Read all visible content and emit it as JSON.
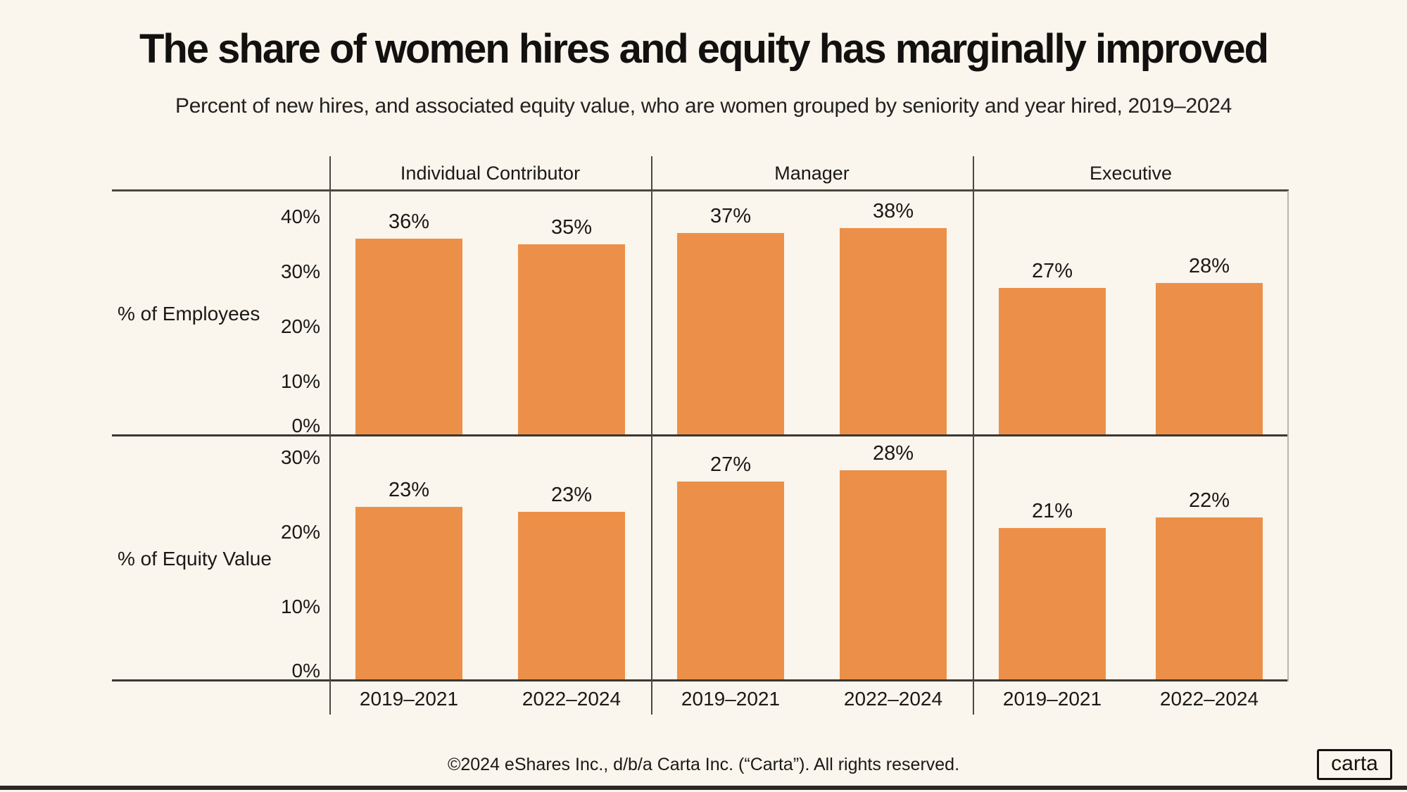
{
  "header": {
    "title": "The share of women hires and equity has marginally improved",
    "subtitle": "Percent of new hires, and associated equity value, who are women grouped by seniority and year hired, 2019–2024"
  },
  "footer": {
    "copyright": "©2024 eShares Inc., d/b/a Carta Inc. (“Carta”). All rights reserved.",
    "logo_text": "carta"
  },
  "colors": {
    "background": "#faf5ed",
    "bar_orange": "#ec9049",
    "line_dark": "#3b3832",
    "line_medium": "#4c4841",
    "line_light": "#bbb5aa",
    "text": "#1b1916",
    "bottom_bar": "#2b2823"
  },
  "chart_data": {
    "type": "bar",
    "title": "The share of women hires and equity has marginally improved",
    "subtitle": "Percent of new hires, and associated equity value, who are women grouped by seniority and year hired, 2019–2024",
    "columns": [
      "Individual Contributor",
      "Manager",
      "Executive"
    ],
    "categories": [
      "2019–2021",
      "2022–2024"
    ],
    "legend": "none",
    "grid": "off",
    "rows": [
      {
        "label": "% of Employees",
        "ylim": [
          0,
          44
        ],
        "ticks": [
          "40%",
          "30%",
          "20%",
          "10%",
          "0%"
        ],
        "tick_values": [
          40,
          30,
          20,
          10,
          0
        ],
        "series": [
          {
            "column": "Individual Contributor",
            "values": [
              36,
              35
            ],
            "display": [
              "36%",
              "35%"
            ],
            "heights_pct": [
              36,
              35
            ]
          },
          {
            "column": "Manager",
            "values": [
              37,
              38
            ],
            "display": [
              "37%",
              "38%"
            ],
            "heights_pct": [
              37,
              38
            ]
          },
          {
            "column": "Executive",
            "values": [
              27,
              28
            ],
            "display": [
              "27%",
              "28%"
            ],
            "heights_pct": [
              27,
              28
            ]
          }
        ]
      },
      {
        "label": "% of Equity Value",
        "ylim": [
          0,
          33
        ],
        "ticks": [
          "30%",
          "20%",
          "10%",
          "0%"
        ],
        "tick_values": [
          30,
          20,
          10,
          0
        ],
        "series": [
          {
            "column": "Individual Contributor",
            "values": [
              23,
              23
            ],
            "display": [
              "23%",
              "23%"
            ],
            "heights_pct": [
              23.4,
              22.7
            ]
          },
          {
            "column": "Manager",
            "values": [
              27,
              28
            ],
            "display": [
              "27%",
              "28%"
            ],
            "heights_pct": [
              26.8,
              28.3
            ]
          },
          {
            "column": "Executive",
            "values": [
              21,
              22
            ],
            "display": [
              "21%",
              "22%"
            ],
            "heights_pct": [
              20.6,
              22.0
            ]
          }
        ]
      }
    ]
  }
}
